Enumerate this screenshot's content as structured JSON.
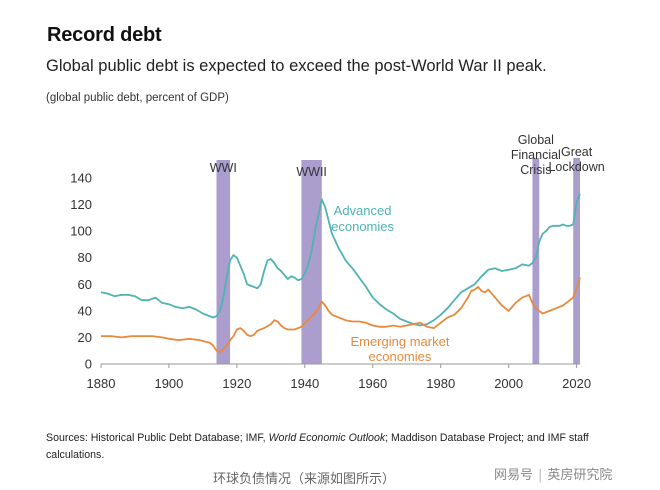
{
  "header": {
    "title": "Record debt",
    "subtitle": "Global public debt is expected to exceed the post-World War II peak.",
    "unit": "(global public debt, percent of GDP)"
  },
  "footer": {
    "source_prefix": "Sources: Historical Public Debt Database; IMF, ",
    "source_italic": "World Economic Outlook",
    "source_suffix": "; Maddison Database Project; and IMF staff calculations.",
    "caption": "环球负债情况（来源如图所示）",
    "watermark_left": "网易号",
    "watermark_sep": "|",
    "watermark_right": "英房研究院"
  },
  "chart_data": {
    "type": "line",
    "xlim": [
      1880,
      2021
    ],
    "ylim": [
      0,
      140
    ],
    "x_ticks": [
      1880,
      1900,
      1920,
      1940,
      1960,
      1980,
      2000,
      2020
    ],
    "y_ticks": [
      0,
      20,
      40,
      60,
      80,
      100,
      120,
      140
    ],
    "grid": false,
    "shaded_periods": [
      {
        "label": "WWI",
        "start": 1914,
        "end": 1918
      },
      {
        "label": "WWII",
        "start": 1939,
        "end": 1945
      },
      {
        "label": "Global Financial Crisis",
        "label_lines": [
          "Global",
          "Financial",
          "Crisis"
        ],
        "start": 2007,
        "end": 2009
      },
      {
        "label": "Great Lockdown",
        "label_lines": [
          "Great",
          "Lockdown"
        ],
        "start": 2019,
        "end": 2021
      }
    ],
    "series": [
      {
        "name": "Advanced economies",
        "label_lines": [
          "Advanced",
          "economies"
        ],
        "color": "#4fb3b3",
        "x": [
          1880,
          1882,
          1884,
          1886,
          1888,
          1890,
          1892,
          1894,
          1896,
          1898,
          1900,
          1902,
          1904,
          1906,
          1908,
          1910,
          1912,
          1913,
          1914,
          1915,
          1916,
          1917,
          1918,
          1919,
          1920,
          1921,
          1922,
          1923,
          1924,
          1925,
          1926,
          1927,
          1928,
          1929,
          1930,
          1931,
          1932,
          1933,
          1934,
          1935,
          1936,
          1937,
          1938,
          1939,
          1940,
          1941,
          1942,
          1943,
          1944,
          1945,
          1946,
          1947,
          1948,
          1950,
          1952,
          1954,
          1956,
          1958,
          1960,
          1962,
          1964,
          1966,
          1968,
          1970,
          1972,
          1974,
          1976,
          1978,
          1980,
          1982,
          1984,
          1986,
          1988,
          1990,
          1992,
          1994,
          1996,
          1998,
          2000,
          2002,
          2004,
          2006,
          2007,
          2008,
          2009,
          2010,
          2011,
          2012,
          2013,
          2014,
          2015,
          2016,
          2017,
          2018,
          2019,
          2020,
          2021
        ],
        "y": [
          54,
          53,
          51,
          52,
          52,
          51,
          48,
          48,
          50,
          46,
          45,
          43,
          42,
          43,
          41,
          38,
          36,
          35,
          36,
          40,
          50,
          65,
          78,
          82,
          80,
          74,
          68,
          60,
          59,
          58,
          57,
          60,
          70,
          78,
          79,
          76,
          72,
          70,
          67,
          64,
          66,
          65,
          63,
          64,
          68,
          75,
          85,
          100,
          112,
          124,
          118,
          108,
          98,
          87,
          78,
          72,
          65,
          58,
          50,
          45,
          41,
          38,
          34,
          32,
          30,
          29,
          30,
          33,
          37,
          42,
          48,
          54,
          57,
          60,
          66,
          71,
          72,
          70,
          71,
          72,
          75,
          74,
          76,
          80,
          92,
          98,
          100,
          103,
          104,
          104,
          104,
          105,
          104,
          104,
          105,
          122,
          128
        ]
      },
      {
        "name": "Emerging market economies",
        "label_lines": [
          "Emerging market",
          "economies"
        ],
        "color": "#e88a3c",
        "x": [
          1880,
          1883,
          1886,
          1889,
          1892,
          1895,
          1898,
          1900,
          1903,
          1906,
          1909,
          1912,
          1913,
          1914,
          1915,
          1916,
          1917,
          1918,
          1919,
          1920,
          1921,
          1922,
          1923,
          1924,
          1925,
          1926,
          1928,
          1930,
          1931,
          1932,
          1933,
          1934,
          1935,
          1936,
          1937,
          1938,
          1939,
          1940,
          1941,
          1942,
          1943,
          1944,
          1945,
          1946,
          1947,
          1948,
          1950,
          1952,
          1954,
          1956,
          1958,
          1960,
          1962,
          1964,
          1966,
          1968,
          1970,
          1972,
          1974,
          1976,
          1978,
          1980,
          1982,
          1984,
          1986,
          1987,
          1988,
          1989,
          1990,
          1991,
          1992,
          1993,
          1994,
          1996,
          1998,
          2000,
          2002,
          2004,
          2006,
          2007,
          2008,
          2009,
          2010,
          2012,
          2014,
          2016,
          2018,
          2019,
          2020,
          2021
        ],
        "y": [
          21,
          21,
          20,
          21,
          21,
          21,
          20,
          19,
          18,
          19,
          18,
          16,
          14,
          10,
          9,
          11,
          14,
          18,
          21,
          26,
          27,
          25,
          22,
          21,
          22,
          25,
          27,
          30,
          33,
          32,
          29,
          27,
          26,
          26,
          26,
          27,
          28,
          31,
          33,
          36,
          38,
          42,
          47,
          44,
          40,
          37,
          35,
          33,
          32,
          32,
          31,
          29,
          28,
          28,
          29,
          28,
          29,
          30,
          31,
          28,
          27,
          31,
          35,
          37,
          42,
          46,
          50,
          55,
          56,
          58,
          55,
          54,
          56,
          50,
          44,
          40,
          46,
          50,
          52,
          46,
          42,
          40,
          38,
          40,
          42,
          44,
          48,
          50,
          57,
          65
        ]
      }
    ]
  }
}
